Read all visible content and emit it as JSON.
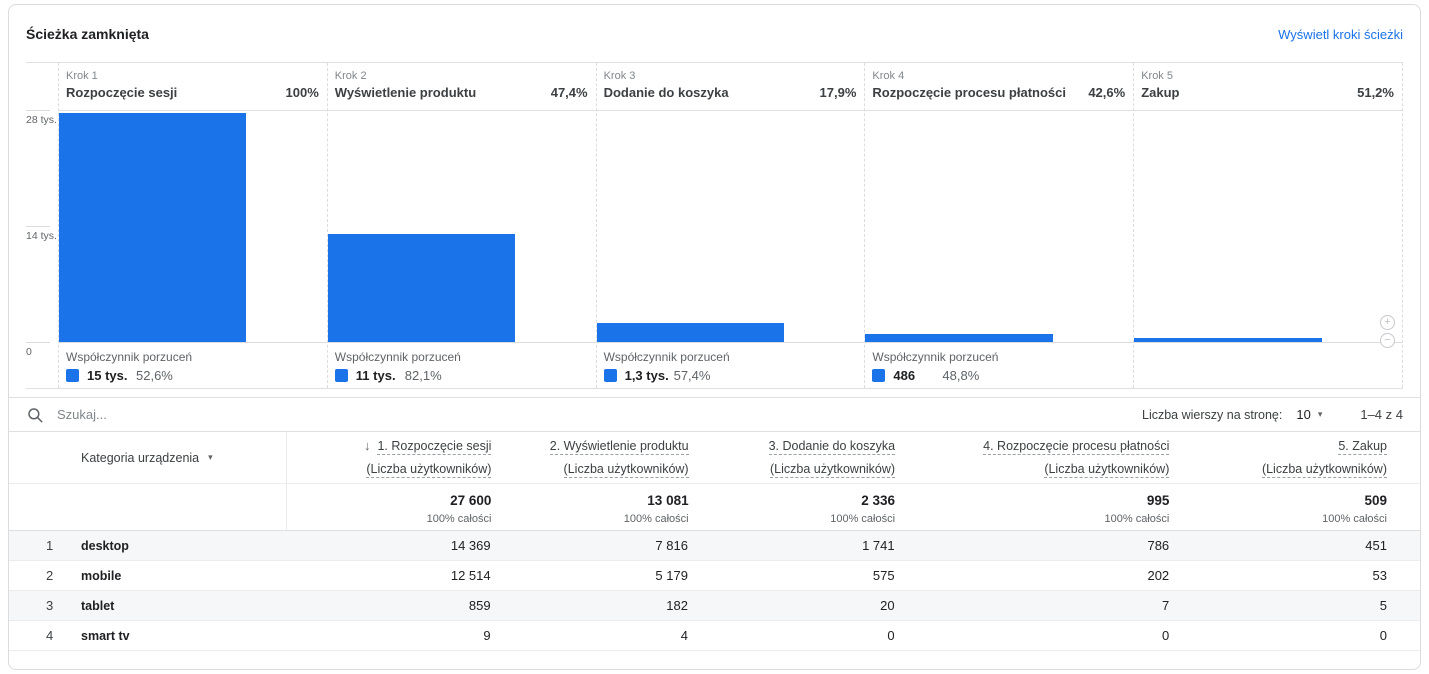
{
  "header": {
    "title": "Ścieżka zamknięta",
    "view_link": "Wyświetl kroki ścieżki"
  },
  "chart_data": {
    "type": "bar",
    "subtype": "funnel",
    "title": "Ścieżka zamknięta",
    "y_max": 28000,
    "y_ticks": [
      "28 tys.",
      "14 tys.",
      "0"
    ],
    "bar_color": "#1a73e8",
    "steps": [
      {
        "step_label": "Krok 1",
        "name": "Rozpoczęcie sesji",
        "pct": "100%",
        "users": 27600,
        "abandonment": {
          "label": "Współczynnik porzuceń",
          "value": "15 tys.",
          "users_est": 15000,
          "pct": "52,6%"
        }
      },
      {
        "step_label": "Krok 2",
        "name": "Wyświetlenie produktu",
        "pct": "47,4%",
        "users": 13081,
        "abandonment": {
          "label": "Współczynnik porzuceń",
          "value": "11 tys.",
          "users_est": 11000,
          "pct": "82,1%"
        }
      },
      {
        "step_label": "Krok 3",
        "name": "Dodanie do koszyka",
        "pct": "17,9%",
        "users": 2336,
        "abandonment": {
          "label": "Współczynnik porzuceń",
          "value": "1,3 tys.",
          "users_est": 1300,
          "pct": "57,4%"
        }
      },
      {
        "step_label": "Krok 4",
        "name": "Rozpoczęcie procesu płatności",
        "pct": "42,6%",
        "users": 995,
        "abandonment": {
          "label": "Współczynnik porzuceń",
          "value": "486",
          "users_est": 486,
          "pct": "48,8%"
        }
      },
      {
        "step_label": "Krok 5",
        "name": "Zakup",
        "pct": "51,2%",
        "users": 509,
        "abandonment": null
      }
    ]
  },
  "toolbar": {
    "search_placeholder": "Szukaj...",
    "rows_per_page_label": "Liczba wierszy na stronę:",
    "rows_per_page_value": "10",
    "range_label": "1–4 z 4"
  },
  "table": {
    "device_header": "Kategoria urządzenia",
    "sub_header": "(Liczba użytkowników)",
    "columns": [
      "1. Rozpoczęcie sesji",
      "2. Wyświetlenie produktu",
      "3. Dodanie do koszyka",
      "4. Rozpoczęcie procesu płatności",
      "5. Zakup"
    ],
    "totals": [
      "27 600",
      "13 081",
      "2 336",
      "995",
      "509"
    ],
    "totals_sub": "100% całości",
    "rows": [
      {
        "num": "1",
        "device": "desktop",
        "values": [
          "14 369",
          "7 816",
          "1 741",
          "786",
          "451"
        ]
      },
      {
        "num": "2",
        "device": "mobile",
        "values": [
          "12 514",
          "5 179",
          "575",
          "202",
          "53"
        ]
      },
      {
        "num": "3",
        "device": "tablet",
        "values": [
          "859",
          "182",
          "20",
          "7",
          "5"
        ]
      },
      {
        "num": "4",
        "device": "smart tv",
        "values": [
          "9",
          "4",
          "0",
          "0",
          "0"
        ]
      }
    ]
  },
  "icons": {
    "sort_icon": "↓",
    "caret_icon": "▾",
    "zoom_in_icon": "+",
    "zoom_out_icon": "−"
  }
}
